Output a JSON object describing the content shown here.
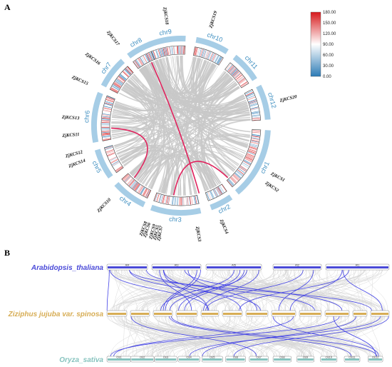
{
  "panels": {
    "a": "A",
    "b": "B"
  },
  "circos": {
    "chromosomes": [
      {
        "id": "chr1",
        "label": "chr1"
      },
      {
        "id": "chr2",
        "label": "chr2"
      },
      {
        "id": "chr3",
        "label": "chr3"
      },
      {
        "id": "chr4",
        "label": "chr4"
      },
      {
        "id": "chr5",
        "label": "chr5"
      },
      {
        "id": "chr6",
        "label": "chr6"
      },
      {
        "id": "chr7",
        "label": "chr7"
      },
      {
        "id": "chr8",
        "label": "chr8"
      },
      {
        "id": "chr9",
        "label": "chr9"
      },
      {
        "id": "chr10",
        "label": "chr10"
      },
      {
        "id": "chr11",
        "label": "chr11"
      },
      {
        "id": "chr12",
        "label": "chr12"
      }
    ],
    "genes": [
      "ZjKCS18",
      "ZjKCS19",
      "ZjKCS17",
      "ZjKCS16",
      "ZjKCS15",
      "ZjKCS20",
      "ZjKCS13",
      "ZjKCS11",
      "ZjKCS12",
      "ZjKCS14",
      "ZjKCS1",
      "ZjKCS2",
      "ZjKCS4",
      "ZjKCS3",
      "ZjKCS10",
      "ZjKCS7",
      "ZjKCS5",
      "ZjKCS9",
      "ZjKCS6",
      "ZjKCS8"
    ],
    "legend": {
      "ticks": [
        "180.00",
        "150.00",
        "120.00",
        "90.00",
        "60.00",
        "30.00",
        "0.00"
      ],
      "colors": {
        "high": "#d7191c",
        "mid": "#ffffff",
        "low": "#2c7bb6"
      }
    },
    "colors": {
      "ideogram": "#a6cde6",
      "link": "#c8c8c8",
      "highlight": "#e0245e",
      "chr_text": "#3d8ec0"
    }
  },
  "synteny": {
    "species": {
      "top": {
        "label": "Arabidopsis_thaliana",
        "color": "#4a4ad8"
      },
      "middle": {
        "label": "Ziziphus jujuba var. spinosa",
        "color": "#d7ad55"
      },
      "bottom": {
        "label": "Oryza_sativa",
        "color": "#86c3be"
      }
    },
    "top_chroms": [
      "At4",
      "At3",
      "At5",
      "At2",
      "At1"
    ],
    "bottom_chroms": [
      "Os1",
      "Os2",
      "Os3",
      "Os4",
      "Os5",
      "Os6",
      "Os7",
      "Os8",
      "Os9",
      "Os10",
      "Os11",
      "Os12"
    ],
    "colors": {
      "link": "#d6d6d6",
      "highlight": "#3a3ae6"
    }
  }
}
